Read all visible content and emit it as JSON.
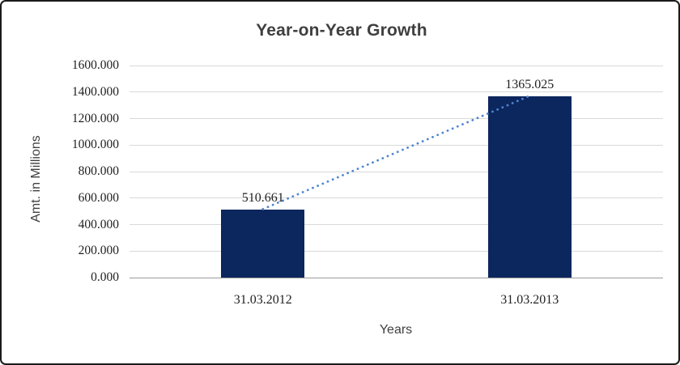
{
  "window": {
    "background": "#ffffff",
    "border_color": "#1a1a1a"
  },
  "chart_data": {
    "type": "bar",
    "title": "Year-on-Year Growth",
    "xlabel": "Years",
    "ylabel": "Amt. in Millions",
    "categories": [
      "31.03.2012",
      "31.03.2013"
    ],
    "series": [
      {
        "name": "Amt. in Millions",
        "values": [
          510.661,
          1365.025
        ]
      }
    ],
    "data_labels": [
      "510.661",
      "1365.025"
    ],
    "ylim": [
      0,
      1600
    ],
    "ytick_step": 200,
    "ytick_labels": [
      "0.000",
      "200.000",
      "400.000",
      "600.000",
      "800.000",
      "1000.000",
      "1200.000",
      "1400.000",
      "1600.000"
    ],
    "grid": true,
    "legend_position": "none",
    "colors": {
      "bar_fill": "#0c265e",
      "trendline": "#4f86cf",
      "gridline": "#d9d9d9",
      "axis_line": "#9c9c9c",
      "title_text": "#3f3f3f",
      "tick_text": "#1f1f1f",
      "axis_title_text": "#404040"
    },
    "trendline": {
      "type": "linear",
      "style": "dotted"
    }
  }
}
